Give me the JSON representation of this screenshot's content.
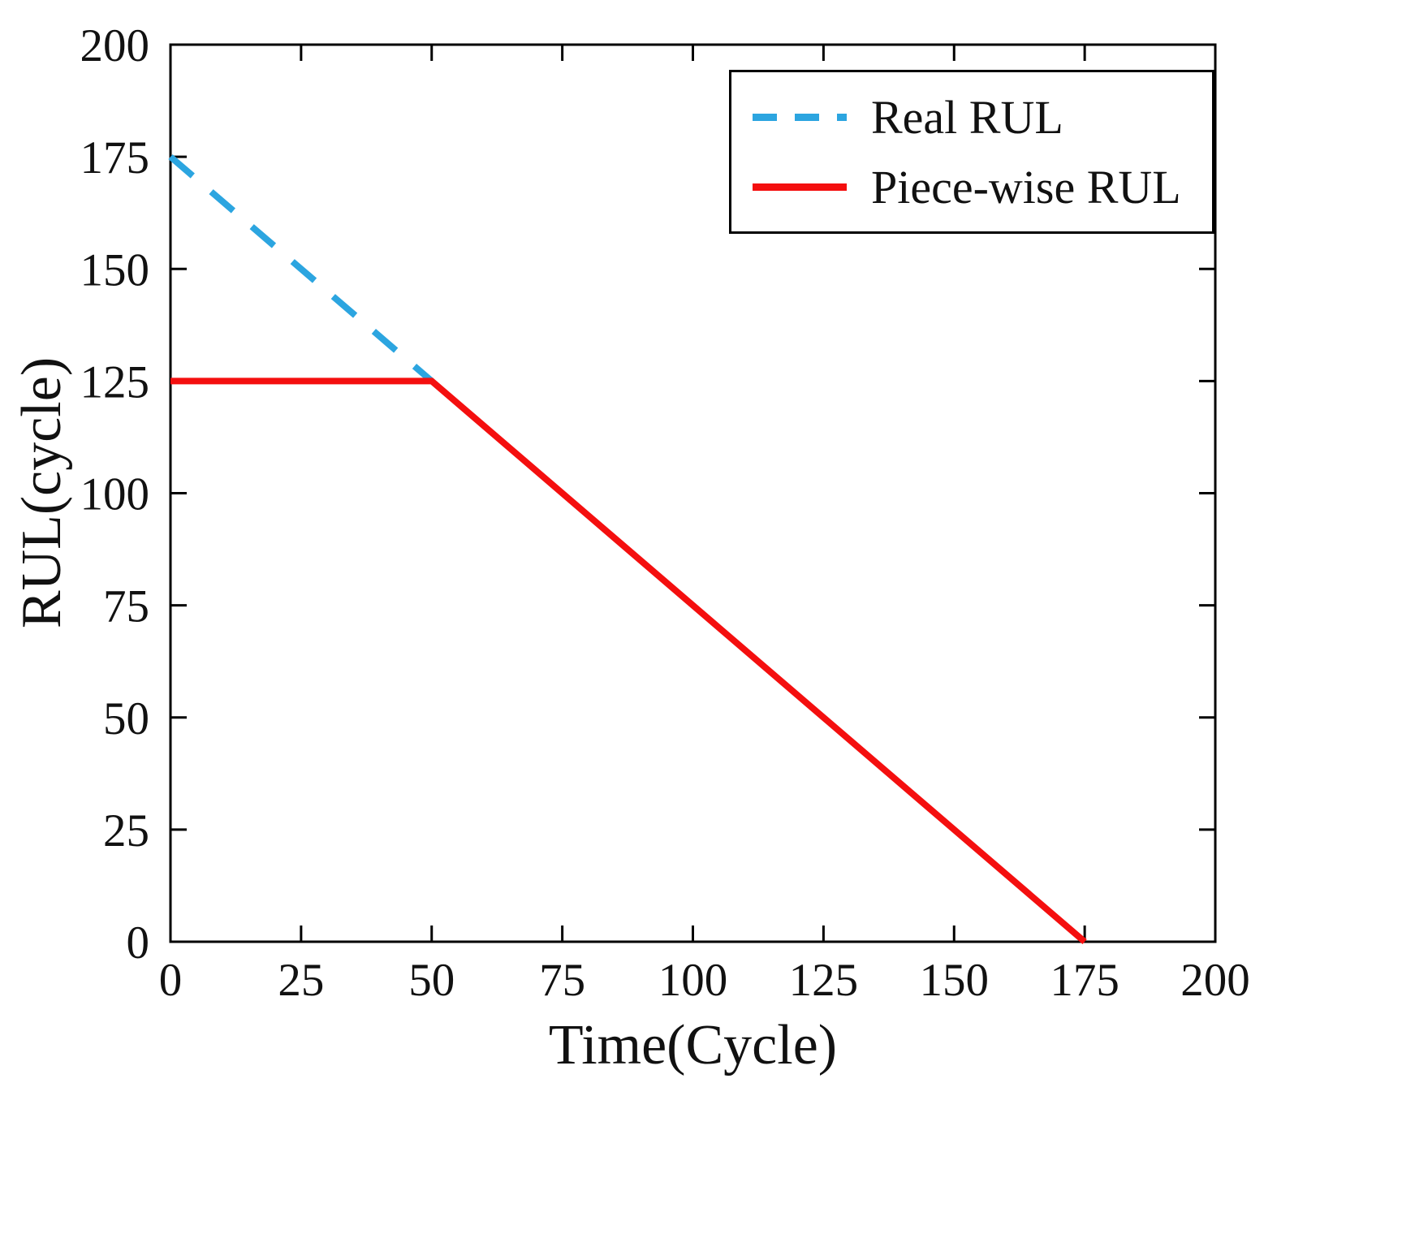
{
  "chart_data": {
    "type": "line",
    "title": "",
    "xlabel": "Time(Cycle)",
    "ylabel": "RUL(cycle)",
    "xlim": [
      0,
      200
    ],
    "ylim": [
      0,
      200
    ],
    "xticks": [
      0,
      25,
      50,
      75,
      100,
      125,
      150,
      175,
      200
    ],
    "yticks": [
      0,
      25,
      50,
      75,
      100,
      125,
      150,
      175,
      200
    ],
    "grid": false,
    "legend_position": "top-right",
    "axis_color": "#000000",
    "series": [
      {
        "name": "Real RUL",
        "color": "#2CA5E0",
        "style": "dashed",
        "width": 8,
        "points": [
          [
            0,
            175
          ],
          [
            50,
            125
          ]
        ]
      },
      {
        "name": "Piece-wise RUL",
        "color": "#F40F0F",
        "style": "solid",
        "width": 8,
        "points": [
          [
            0,
            125
          ],
          [
            50,
            125
          ],
          [
            175,
            0
          ]
        ]
      }
    ]
  }
}
